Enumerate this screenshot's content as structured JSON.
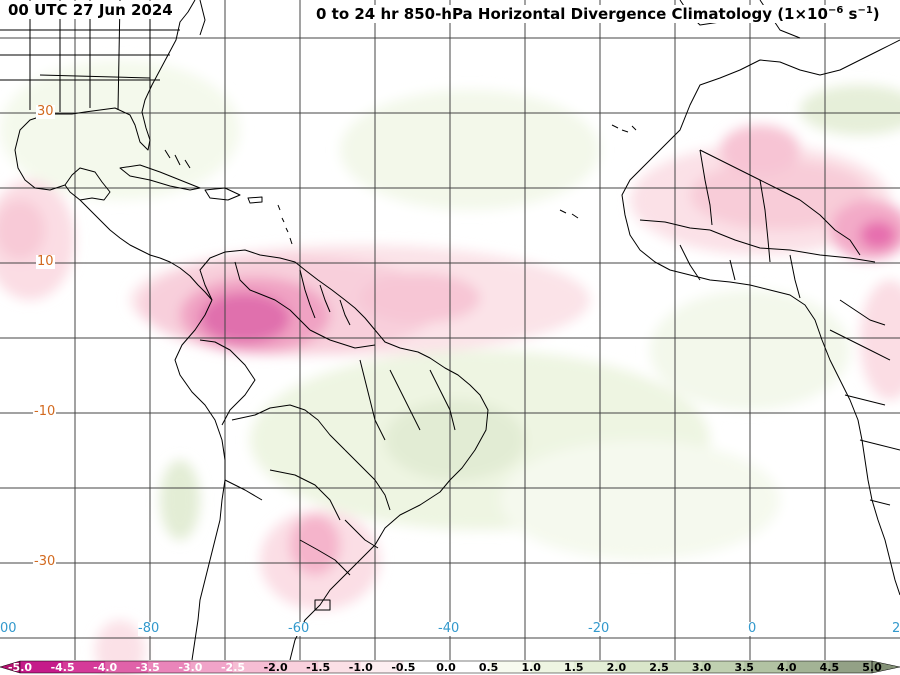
{
  "header": {
    "valid_time": "00 UTC 27 Jun 2024",
    "product_title_prefix": "0 to 24 hr 850-hPa Horizontal Divergence Climatology (1×10",
    "product_title_exp": "−6",
    "product_title_mid": " s",
    "product_title_exp2": "−1",
    "product_title_suffix": ")"
  },
  "map": {
    "lat_labels": [
      "30",
      "10",
      "-10",
      "-30"
    ],
    "lon_labels": [
      "00",
      "-80",
      "-60",
      "-40",
      "-20",
      "0",
      "2"
    ]
  },
  "colorbar": {
    "tick_labels": [
      "-5.0",
      "-4.5",
      "-4.0",
      "-3.5",
      "-3.0",
      "-2.5",
      "-2.0",
      "-1.5",
      "-1.0",
      "-0.5",
      "0.0",
      "0.5",
      "1.0",
      "1.5",
      "2.0",
      "2.5",
      "3.0",
      "3.5",
      "4.0",
      "4.5",
      "5.0"
    ],
    "colors": [
      "#c51b8a",
      "#d53a99",
      "#e062a9",
      "#ea85ba",
      "#f1a4c9",
      "#f6bdd4",
      "#f9d0dd",
      "#fbe0e6",
      "#fdeef1",
      "#ffffff",
      "#ffffff",
      "#f7faef",
      "#eef5e2",
      "#e4eed6",
      "#d9e6ca",
      "#cddcbe",
      "#c0d0b1",
      "#b2c3a3",
      "#a3b395",
      "#93a186"
    ]
  }
}
